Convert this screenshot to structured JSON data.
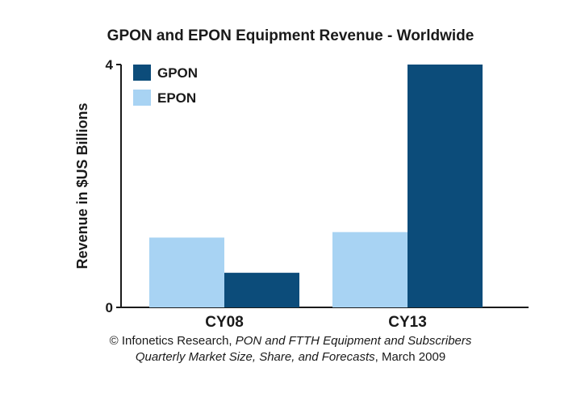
{
  "chart_data": {
    "type": "bar",
    "title": "GPON and EPON Equipment Revenue - Worldwide",
    "xlabel": "",
    "ylabel": "Revenue in $US Billions",
    "categories": [
      "CY08",
      "CY13"
    ],
    "series": [
      {
        "name": "EPON",
        "color": "#a8d3f3",
        "values": [
          1.15,
          1.24
        ]
      },
      {
        "name": "GPON",
        "color": "#0c4c7a",
        "values": [
          0.57,
          4.0
        ]
      }
    ],
    "ylim": [
      0,
      4
    ],
    "yticks": [
      "0",
      "4"
    ],
    "legend": "top-left",
    "grid": false
  },
  "source": {
    "line1_prefix": "© Infonetics Research, ",
    "line1_italic": "PON and FTTH Equipment and Subscribers",
    "line2_italic": "Quarterly Market Size, Share, and Forecasts",
    "line2_suffix": ", March 2009"
  }
}
